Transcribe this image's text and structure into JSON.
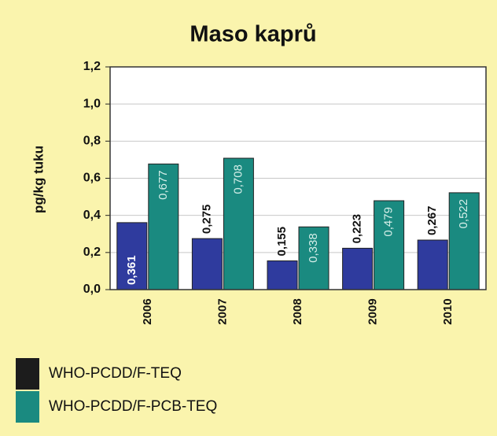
{
  "chart_data": {
    "type": "bar",
    "title": "Maso kaprů",
    "y_label": "pg/kg tuku",
    "categories": [
      "2006",
      "2007",
      "2008",
      "2009",
      "2010"
    ],
    "series": [
      {
        "name": "WHO-PCDD/F-TEQ",
        "color": "#2f3b9e",
        "legend_color": "#1c1c1c",
        "values": [
          0.361,
          0.275,
          0.155,
          0.223,
          0.267
        ],
        "value_labels": [
          "0,361",
          "0,275",
          "0,155",
          "0,223",
          "0,267"
        ]
      },
      {
        "name": "WHO-PCDD/F-PCB-TEQ",
        "color": "#1a8a80",
        "legend_color": "#1a8a80",
        "values": [
          0.677,
          0.708,
          0.338,
          0.479,
          0.522
        ],
        "value_labels": [
          "0,677",
          "0,708",
          "0,338",
          "0,479",
          "0,522"
        ]
      }
    ],
    "ylim": [
      0,
      1.2
    ],
    "yticks": [
      {
        "value": 0,
        "label": "0,0"
      },
      {
        "value": 0.2,
        "label": "0,2"
      },
      {
        "value": 0.4,
        "label": "0,4"
      },
      {
        "value": 0.6,
        "label": "0,6"
      },
      {
        "value": 0.8,
        "label": "0,8"
      },
      {
        "value": 1.0,
        "label": "1,0"
      },
      {
        "value": 1.2,
        "label": "1,2"
      }
    ],
    "grid": true
  }
}
